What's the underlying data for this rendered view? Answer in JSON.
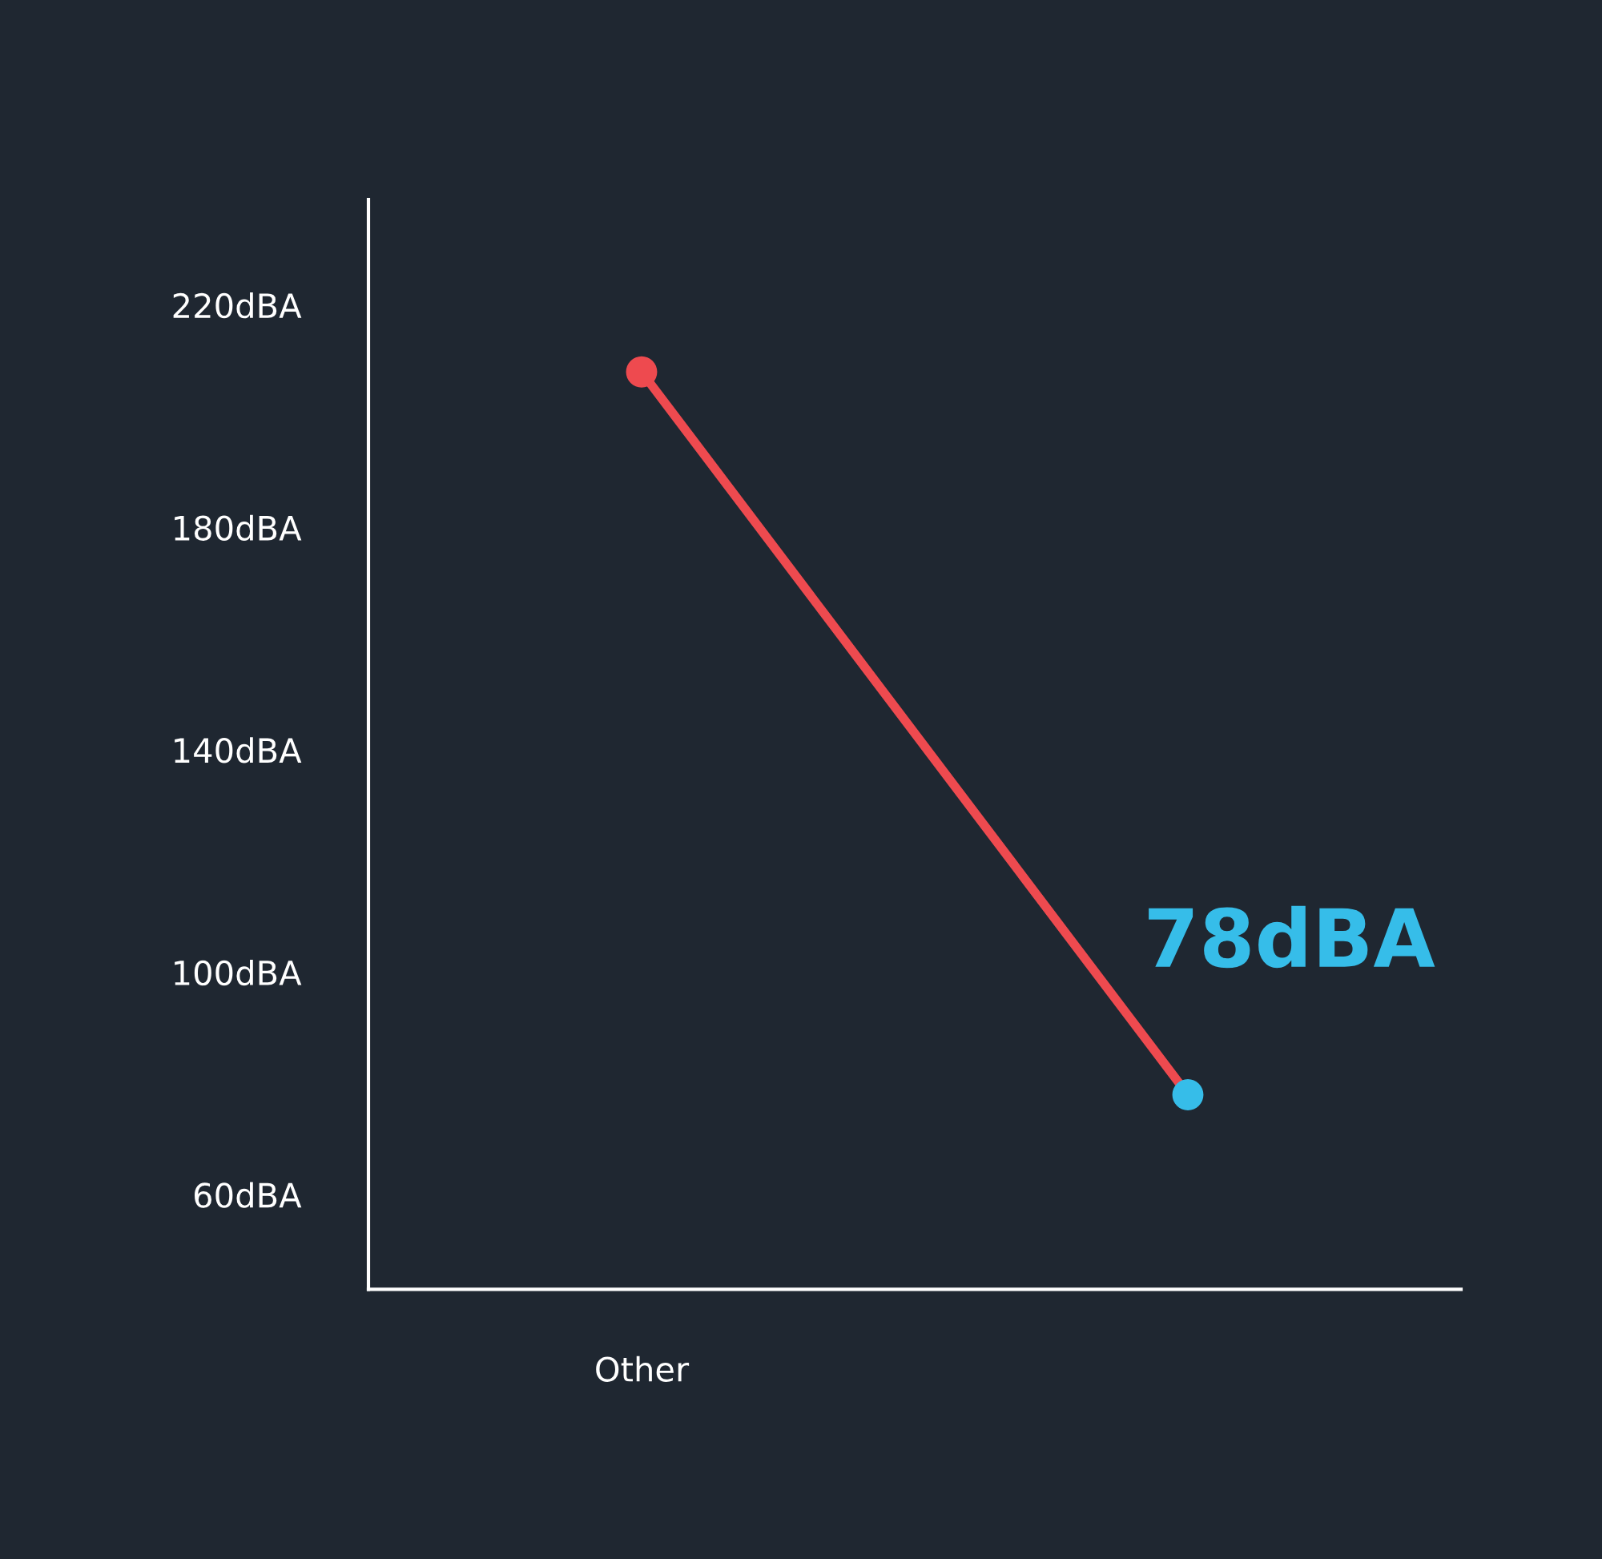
{
  "chart_data": {
    "type": "line",
    "categories": [
      "Other",
      null
    ],
    "series": [
      {
        "color": "#ee4a4f",
        "colors": [
          "#ee4a4f",
          "#36bde9"
        ],
        "values": [
          208,
          78
        ],
        "value_labels": [
          null,
          "78dBA"
        ]
      }
    ],
    "ylim": [
      43,
      239
    ],
    "yticks": [
      {
        "value": 60,
        "label": "60dBA"
      },
      {
        "value": 100,
        "label": "100dBA"
      },
      {
        "value": 140,
        "label": "140dBA"
      },
      {
        "value": 180,
        "label": "180dBA"
      },
      {
        "value": 220,
        "label": "220dBA"
      }
    ],
    "grid": false,
    "marker": "circle",
    "line_style": "solid"
  }
}
